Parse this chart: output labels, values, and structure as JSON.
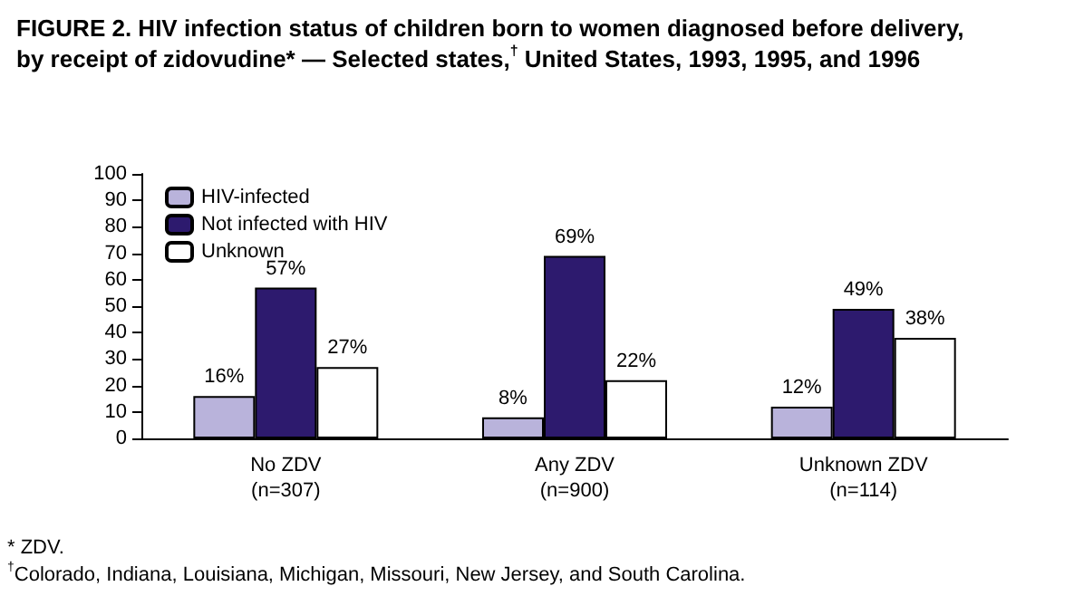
{
  "chart_data": {
    "type": "bar",
    "title": "FIGURE 2. HIV infection status of children born to women diagnosed before delivery,\nby receipt of zidovudine* — Selected states,$^{†}$ United States, 1993, 1995, and 1996",
    "categories": [
      "No ZDV\n(n=307)",
      "Any ZDV\n(n=900)",
      "Unknown ZDV\n(n=114)"
    ],
    "series": [
      {
        "name": "HIV-infected",
        "color": "#b9b3db",
        "values": [
          16,
          8,
          12
        ],
        "value_labels": [
          "16%",
          "8%",
          "12%"
        ]
      },
      {
        "name": "Not infected with HIV",
        "color": "#2d1a6e",
        "values": [
          57,
          69,
          49
        ],
        "value_labels": [
          "57%",
          "69%",
          "49%"
        ]
      },
      {
        "name": "Unknown",
        "color": "#ffffff",
        "values": [
          27,
          22,
          38
        ],
        "value_labels": [
          "27%",
          "22%",
          "38%"
        ]
      }
    ],
    "ylim": [
      0,
      100
    ],
    "yticks": [
      0,
      10,
      20,
      30,
      40,
      50,
      60,
      70,
      80,
      90,
      100
    ],
    "grid": false,
    "legend": "top left",
    "annotations": [
      "* ZDV.",
      "$^{†}$Colorado, Indiana, Louisiana, Michigan, Missouri, New Jersey, and South Carolina."
    ]
  }
}
